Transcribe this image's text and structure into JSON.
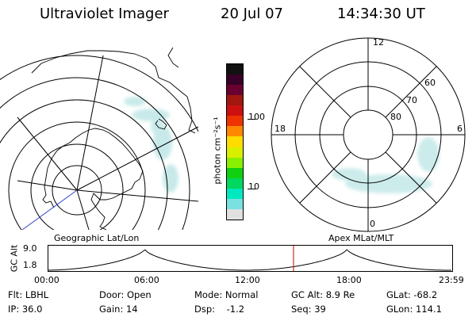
{
  "header": {
    "title": "Ultraviolet Imager",
    "date": "20 Jul 07",
    "time": "14:34:30 UT"
  },
  "colorbar": {
    "label": "photon cm⁻²s⁻¹",
    "ticks": [
      "100",
      "10"
    ],
    "colors": [
      "#111111",
      "#380028",
      "#6a0030",
      "#a01810",
      "#cc1010",
      "#ee3300",
      "#ff8800",
      "#ffdd00",
      "#d8f000",
      "#88f000",
      "#10d010",
      "#00d860",
      "#00e8c0",
      "#7ae0e0",
      "#e0e0e0"
    ]
  },
  "left_panel": {
    "caption": "Geographic Lat/Lon"
  },
  "right_panel": {
    "caption": "Apex MLat/MLT",
    "mlt_labels": {
      "top": "12",
      "bottom": "0",
      "left": "18",
      "right": "6"
    },
    "mlat_labels": [
      "60",
      "70",
      "80"
    ]
  },
  "altitude_plot": {
    "ylabel": "GC Alt",
    "y_ticks": [
      "9.0",
      "1.8"
    ],
    "x_ticks": [
      "00:00",
      "06:00",
      "12:00",
      "18:00",
      "23:59"
    ],
    "marker_color": "#cc0000"
  },
  "footer": {
    "filter": "Flt: LBHL",
    "ip": "IP: 36.0",
    "door": "Door: Open",
    "gain": "Gain: 14",
    "mode": "Mode: Normal",
    "dsp": "Dsp:    -1.2",
    "gc_alt": "GC Alt: 8.9 Re",
    "seq": "Seq: 39",
    "glat": "GLat: -68.2",
    "glon": "GLon: 114.1"
  }
}
